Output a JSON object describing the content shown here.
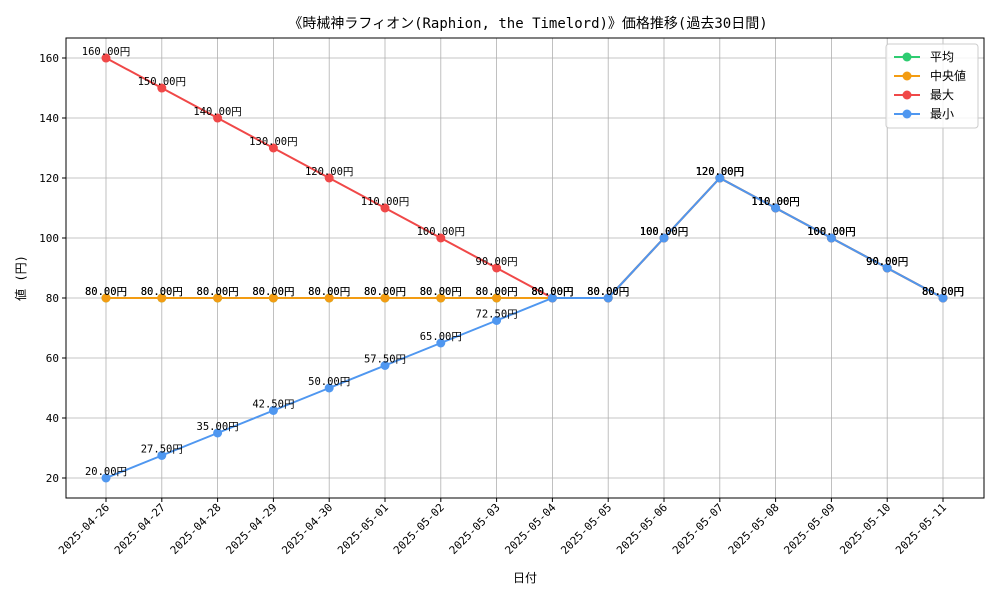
{
  "chart_data": {
    "type": "line",
    "title": "《時械神ラフィオン(Raphion, the Timelord)》価格推移(過去30日間)",
    "xlabel": "日付",
    "ylabel": "値 (円)",
    "ylim": [
      13.33,
      166.67
    ],
    "yticks": [
      20,
      40,
      60,
      80,
      100,
      120,
      140,
      160
    ],
    "grid": true,
    "legend_position": "top-right",
    "label_suffix": "円",
    "categories": [
      "2025-04-26",
      "2025-04-27",
      "2025-04-28",
      "2025-04-29",
      "2025-04-30",
      "2025-05-01",
      "2025-05-02",
      "2025-05-03",
      "2025-05-04",
      "2025-05-05",
      "2025-05-06",
      "2025-05-07",
      "2025-05-08",
      "2025-05-09",
      "2025-05-10",
      "2025-05-11"
    ],
    "series": [
      {
        "name": "平均",
        "color": "#2ecc71",
        "values": [
          80,
          80,
          80,
          80,
          80,
          80,
          80,
          80,
          80,
          80,
          100,
          120,
          110,
          100,
          90,
          80
        ]
      },
      {
        "name": "中央値",
        "color": "#f39c12",
        "values": [
          80,
          80,
          80,
          80,
          80,
          80,
          80,
          80,
          80,
          80,
          100,
          120,
          110,
          100,
          90,
          80
        ]
      },
      {
        "name": "最大",
        "color": "#f04848",
        "values": [
          160,
          150,
          140,
          130,
          120,
          110,
          100,
          90,
          80,
          80,
          100,
          120,
          110,
          100,
          90,
          80
        ]
      },
      {
        "name": "最小",
        "color": "#4f97f0",
        "values": [
          20,
          27.5,
          35,
          42.5,
          50,
          57.5,
          65,
          72.5,
          80,
          80,
          100,
          120,
          110,
          100,
          90,
          80
        ]
      }
    ]
  }
}
